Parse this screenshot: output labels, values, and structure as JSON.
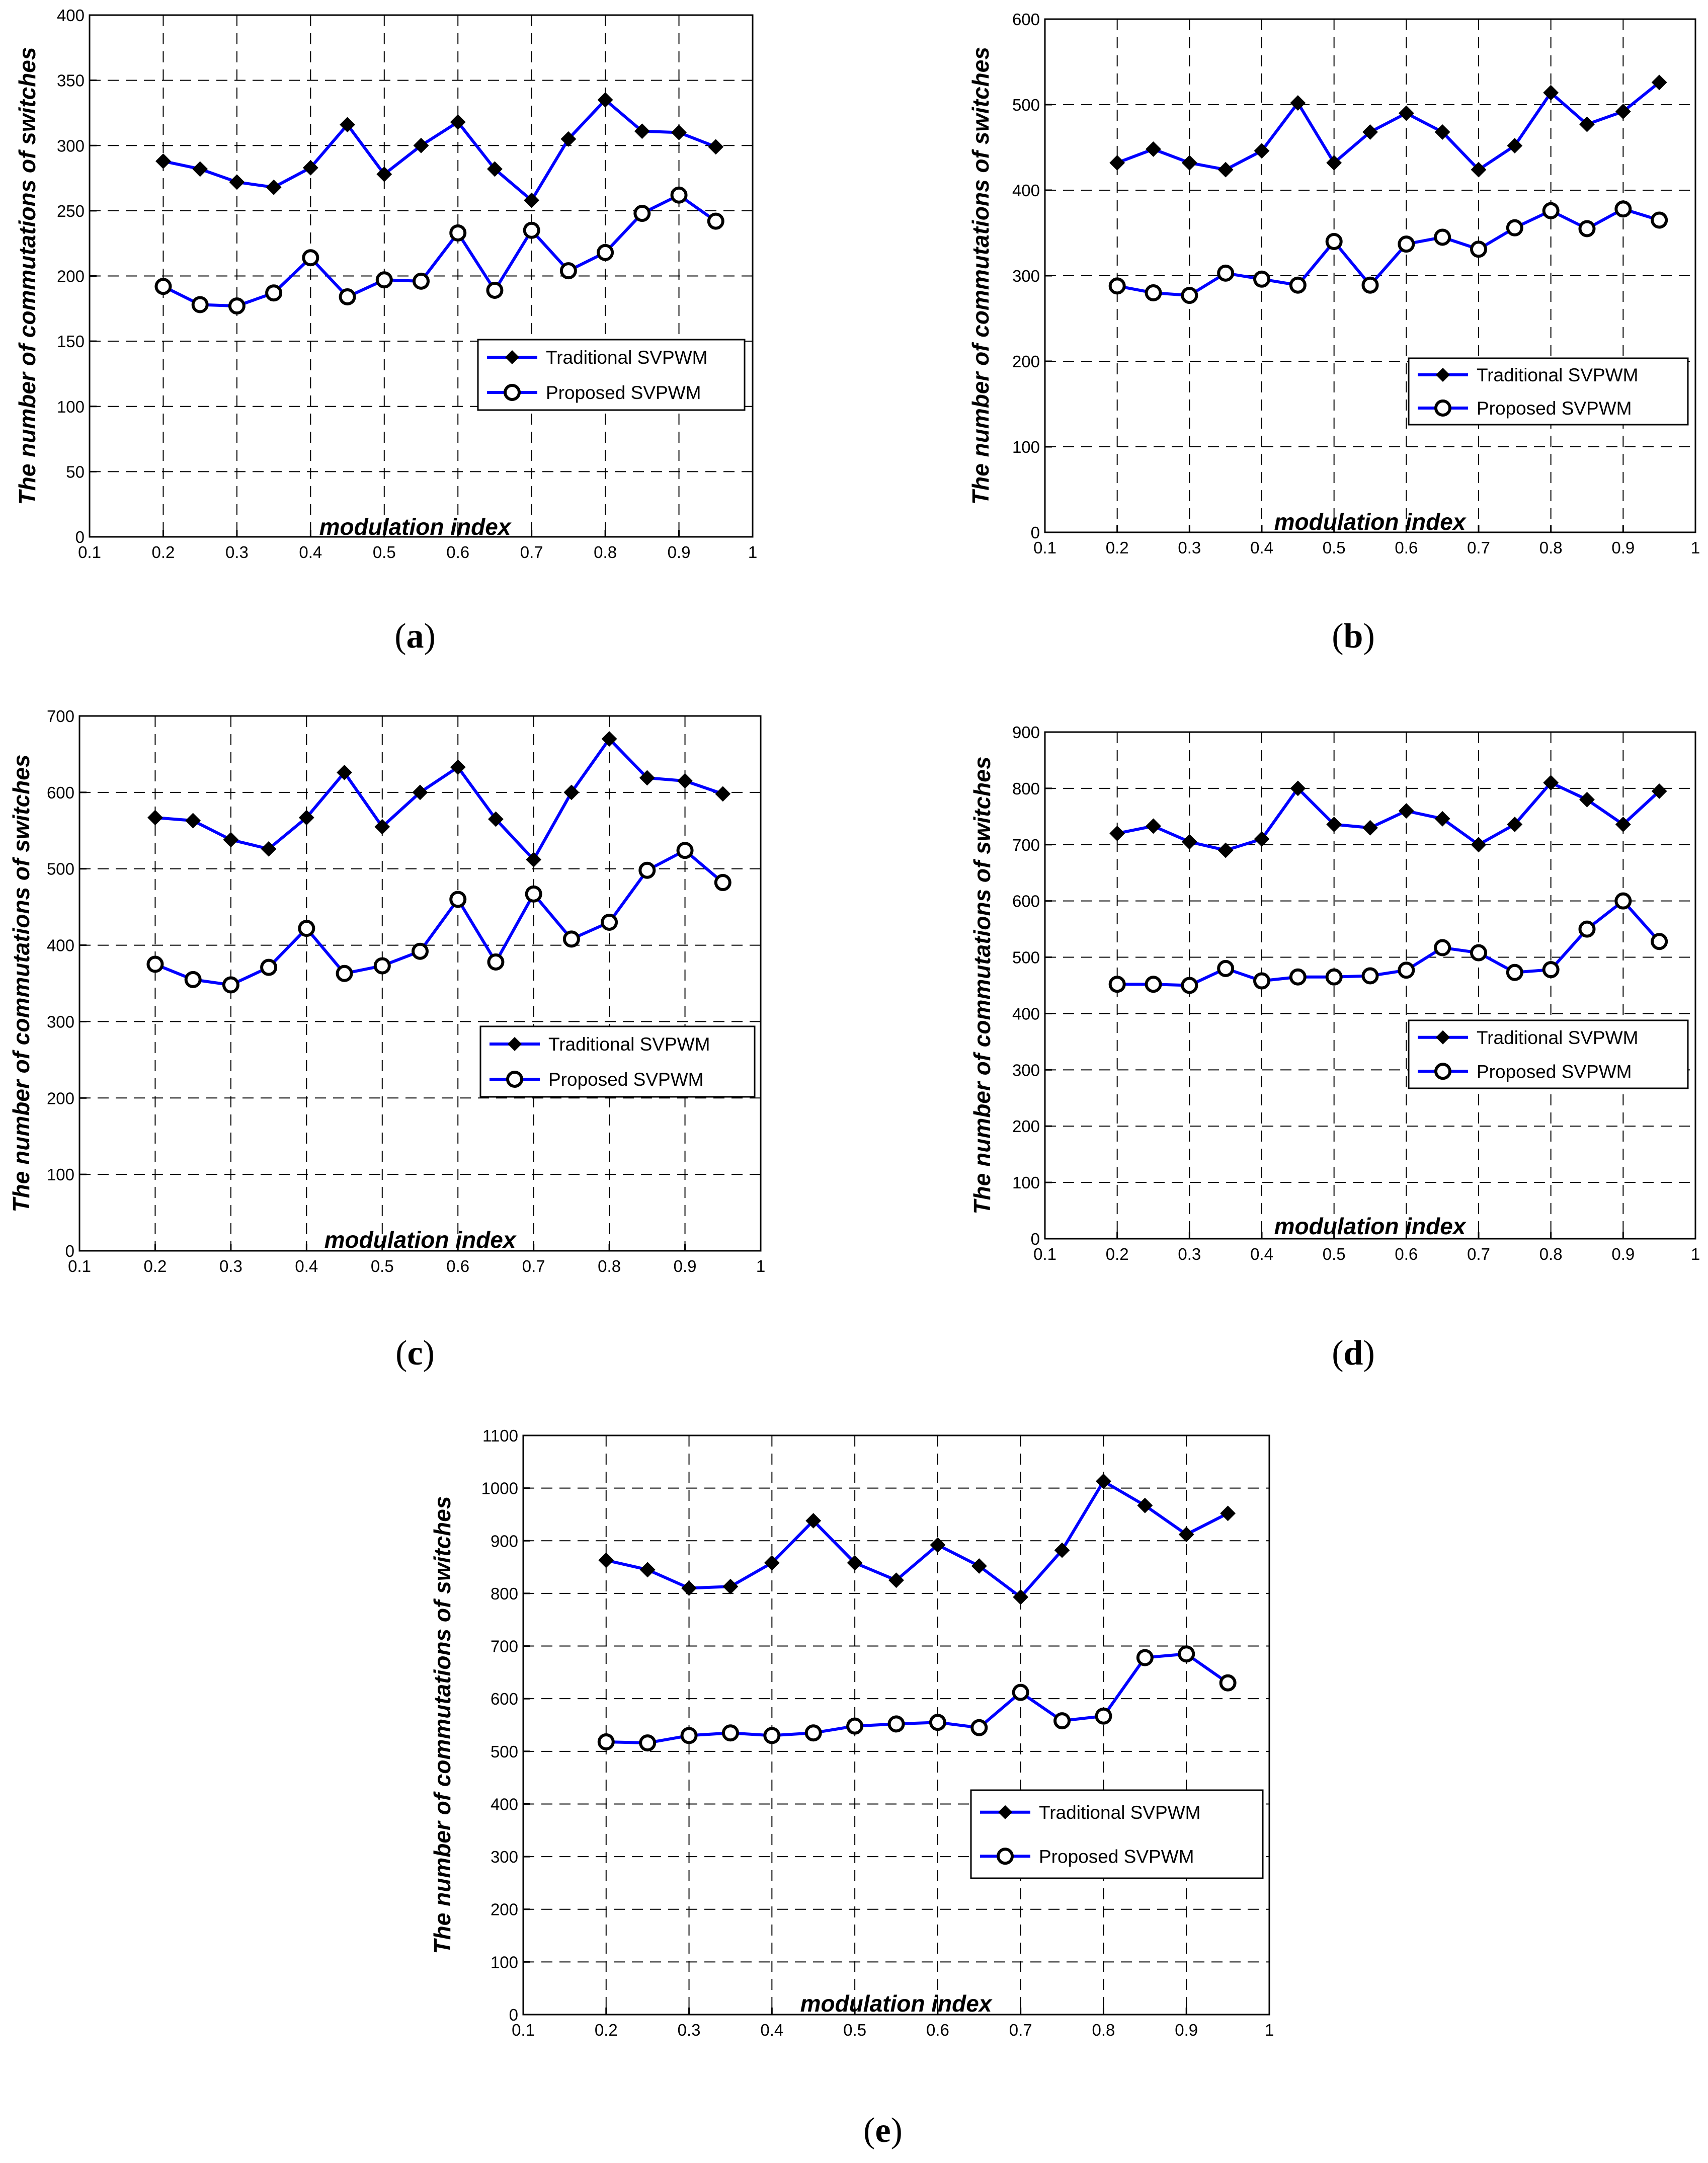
{
  "charts": [
    {
      "id": "a",
      "caption_letter": "a",
      "chart_data": {
        "type": "line",
        "xlabel": "modulation index",
        "ylabel": "The number of commutations of switches",
        "xlim": [
          0.1,
          1
        ],
        "ylim": [
          0,
          400
        ],
        "xticks": [
          0.1,
          0.2,
          0.3,
          0.4,
          0.5,
          0.6,
          0.7,
          0.8,
          0.9,
          1
        ],
        "yticks": [
          0,
          50,
          100,
          150,
          200,
          250,
          300,
          350,
          400
        ],
        "x": [
          0.2,
          0.25,
          0.3,
          0.35,
          0.4,
          0.45,
          0.5,
          0.55,
          0.6,
          0.65,
          0.7,
          0.75,
          0.8,
          0.85,
          0.9,
          0.95
        ],
        "series": [
          {
            "name": "Traditional SVPWM",
            "marker": "diamond",
            "values": [
              288,
              282,
              272,
              268,
              283,
              316,
              278,
              300,
              318,
              282,
              258,
              305,
              335,
              311,
              310,
              299
            ]
          },
          {
            "name": "Proposed SVPWM",
            "marker": "circle",
            "values": [
              192,
              178,
              177,
              187,
              214,
              184,
              197,
              196,
              233,
              189,
              235,
              204,
              218,
              248,
              262,
              242
            ]
          }
        ],
        "grid": true,
        "legend": "middle-right"
      }
    },
    {
      "id": "b",
      "caption_letter": "b",
      "chart_data": {
        "type": "line",
        "xlabel": "modulation index",
        "ylabel": "The number of commutations of switches",
        "xlim": [
          0.1,
          1
        ],
        "ylim": [
          0,
          600
        ],
        "xticks": [
          0.1,
          0.2,
          0.3,
          0.4,
          0.5,
          0.6,
          0.7,
          0.8,
          0.9,
          1
        ],
        "yticks": [
          0,
          100,
          200,
          300,
          400,
          500,
          600
        ],
        "x": [
          0.2,
          0.25,
          0.3,
          0.35,
          0.4,
          0.45,
          0.5,
          0.55,
          0.6,
          0.65,
          0.7,
          0.75,
          0.8,
          0.85,
          0.9,
          0.95
        ],
        "series": [
          {
            "name": "Traditional SVPWM",
            "marker": "diamond",
            "values": [
              432,
              448,
              432,
              424,
              446,
              502,
              432,
              468,
              490,
              468,
              424,
              452,
              514,
              477,
              492,
              526
            ]
          },
          {
            "name": "Proposed SVPWM",
            "marker": "circle",
            "values": [
              288,
              280,
              277,
              303,
              296,
              289,
              340,
              289,
              337,
              345,
              331,
              356,
              376,
              355,
              378,
              365
            ]
          }
        ],
        "grid": true,
        "legend": "middle-right"
      }
    },
    {
      "id": "c",
      "caption_letter": "c",
      "chart_data": {
        "type": "line",
        "xlabel": "modulation index",
        "ylabel": "The number of commutations of switches",
        "xlim": [
          0.1,
          1
        ],
        "ylim": [
          0,
          700
        ],
        "xticks": [
          0.1,
          0.2,
          0.3,
          0.4,
          0.5,
          0.6,
          0.7,
          0.8,
          0.9,
          1
        ],
        "yticks": [
          0,
          100,
          200,
          300,
          400,
          500,
          600,
          700
        ],
        "x": [
          0.2,
          0.25,
          0.3,
          0.35,
          0.4,
          0.45,
          0.5,
          0.55,
          0.6,
          0.65,
          0.7,
          0.75,
          0.8,
          0.85,
          0.9,
          0.95
        ],
        "series": [
          {
            "name": "Traditional SVPWM",
            "marker": "diamond",
            "values": [
              567,
              563,
              538,
              526,
              567,
              626,
              555,
              600,
              633,
              565,
              512,
              600,
              670,
              619,
              615,
              598
            ]
          },
          {
            "name": "Proposed SVPWM",
            "marker": "circle",
            "values": [
              375,
              355,
              348,
              371,
              422,
              363,
              373,
              392,
              460,
              378,
              467,
              408,
              430,
              498,
              524,
              482
            ]
          }
        ],
        "grid": true,
        "legend": "middle-right"
      }
    },
    {
      "id": "d",
      "caption_letter": "d",
      "chart_data": {
        "type": "line",
        "xlabel": "modulation index",
        "ylabel": "The number of commutations of switches",
        "xlim": [
          0.1,
          1
        ],
        "ylim": [
          0,
          900
        ],
        "xticks": [
          0.1,
          0.2,
          0.3,
          0.4,
          0.5,
          0.6,
          0.7,
          0.8,
          0.9,
          1
        ],
        "yticks": [
          0,
          100,
          200,
          300,
          400,
          500,
          600,
          700,
          800,
          900
        ],
        "x": [
          0.2,
          0.25,
          0.3,
          0.35,
          0.4,
          0.45,
          0.5,
          0.55,
          0.6,
          0.65,
          0.7,
          0.75,
          0.8,
          0.85,
          0.9,
          0.95
        ],
        "series": [
          {
            "name": "Traditional SVPWM",
            "marker": "diamond",
            "values": [
              720,
              733,
              705,
              690,
              710,
              800,
              736,
              730,
              760,
              746,
              700,
              736,
              810,
              780,
              736,
              795
            ]
          },
          {
            "name": "Proposed SVPWM",
            "marker": "circle",
            "values": [
              452,
              452,
              450,
              480,
              458,
              465,
              465,
              467,
              477,
              517,
              508,
              473,
              478,
              550,
              600,
              528
            ]
          }
        ],
        "grid": true,
        "legend": "middle-right"
      }
    },
    {
      "id": "e",
      "caption_letter": "e",
      "chart_data": {
        "type": "line",
        "xlabel": "modulation index",
        "ylabel": "The number of commutations of switches",
        "xlim": [
          0.1,
          1
        ],
        "ylim": [
          0,
          1100
        ],
        "xticks": [
          0.1,
          0.2,
          0.3,
          0.4,
          0.5,
          0.6,
          0.7,
          0.8,
          0.9,
          1
        ],
        "yticks": [
          0,
          100,
          200,
          300,
          400,
          500,
          600,
          700,
          800,
          900,
          1000,
          1100
        ],
        "x": [
          0.2,
          0.25,
          0.3,
          0.35,
          0.4,
          0.45,
          0.5,
          0.55,
          0.6,
          0.65,
          0.7,
          0.75,
          0.8,
          0.85,
          0.9,
          0.95
        ],
        "series": [
          {
            "name": "Traditional SVPWM",
            "marker": "diamond",
            "values": [
              863,
              845,
              810,
              813,
              858,
              938,
              858,
              825,
              892,
              852,
              793,
              882,
              1013,
              967,
              912,
              952
            ]
          },
          {
            "name": "Proposed SVPWM",
            "marker": "circle",
            "values": [
              518,
              516,
              530,
              535,
              530,
              535,
              548,
              552,
              555,
              545,
              612,
              558,
              567,
              678,
              685,
              630
            ]
          }
        ],
        "grid": true,
        "legend": "middle-right"
      }
    }
  ],
  "colors": {
    "line": "#0000ff",
    "marker": "#000000",
    "grid": "#000000",
    "axes": "#000000"
  }
}
